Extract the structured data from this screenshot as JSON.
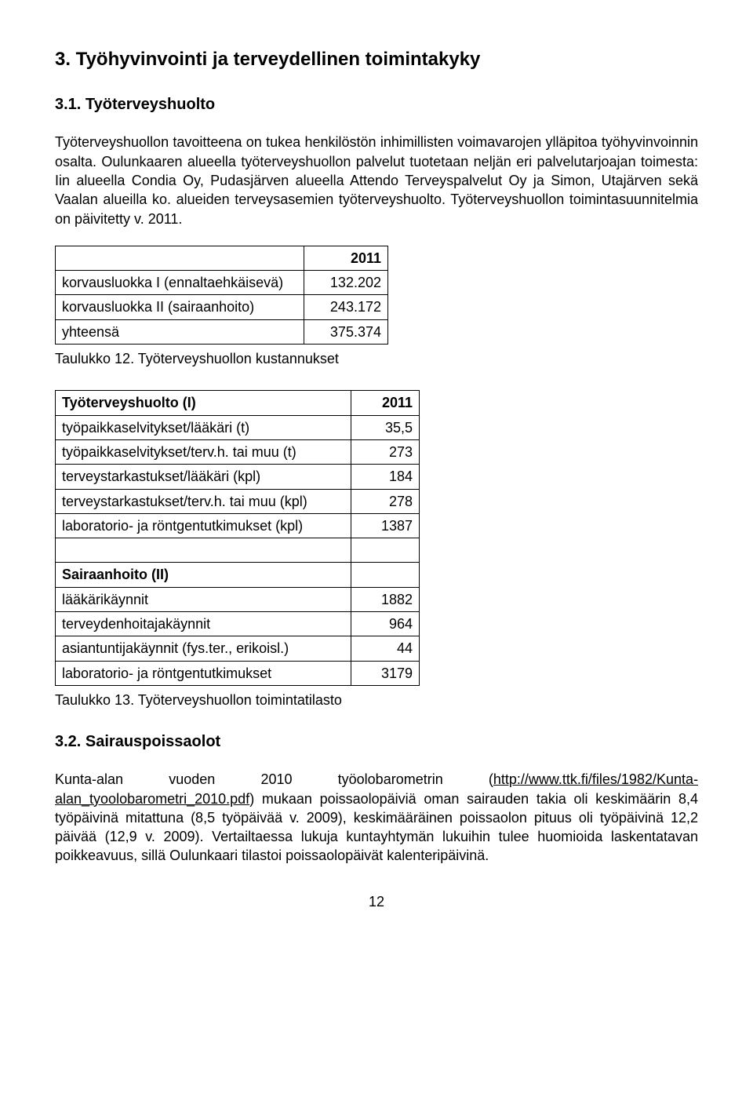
{
  "section3": {
    "title": "3. Työhyvinvointi ja terveydellinen toimintakyky",
    "sub31_title": "3.1. Työterveyshuolto",
    "para1": "Työterveyshuollon tavoitteena on tukea henkilöstön inhimillisten voimavarojen ylläpitoa työhyvinvoinnin osalta. Oulunkaaren alueella työterveyshuollon palvelut tuotetaan neljän eri palvelutarjoajan toimesta: Iin alueella Condia Oy, Pudasjärven alueella Attendo Terveyspalvelut Oy ja Simon, Utajärven sekä Vaalan alueilla ko. alueiden terveysasemien työterveyshuolto. Työterveyshuollon toimintasuunnitelmia on päivitetty v. 2011.",
    "table12": {
      "year": "2011",
      "rows": [
        {
          "label": "korvausluokka I (ennaltaehkäisevä)",
          "value": "132.202"
        },
        {
          "label": "korvausluokka II (sairaanhoito)",
          "value": "243.172"
        },
        {
          "label": "yhteensä",
          "value": "375.374"
        }
      ],
      "caption": "Taulukko 12. Työterveyshuollon kustannukset"
    },
    "table13": {
      "heading_label": "Työterveyshuolto (I)",
      "heading_value": "2011",
      "rows_a": [
        {
          "label": "työpaikkaselvitykset/lääkäri (t)",
          "value": "35,5"
        },
        {
          "label": "työpaikkaselvitykset/terv.h. tai muu (t)",
          "value": "273"
        },
        {
          "label": "terveystarkastukset/lääkäri (kpl)",
          "value": "184"
        },
        {
          "label": "terveystarkastukset/terv.h. tai muu (kpl)",
          "value": "278"
        },
        {
          "label": "laboratorio- ja röntgentutkimukset (kpl)",
          "value": "1387"
        }
      ],
      "subheading": "Sairaanhoito (II)",
      "rows_b": [
        {
          "label": "lääkärikäynnit",
          "value": "1882"
        },
        {
          "label": "terveydenhoitajakäynnit",
          "value": "964"
        },
        {
          "label": "asiantuntijakäynnit (fys.ter., erikoisl.)",
          "value": "44"
        },
        {
          "label": "laboratorio- ja röntgentutkimukset",
          "value": "3179"
        }
      ],
      "caption": "Taulukko 13. Työterveyshuollon toimintatilasto"
    },
    "sub32_title": "3.2. Sairauspoissaolot",
    "para2_pre": "Kunta-alan vuoden 2010 työolobarometrin (",
    "para2_link": "http://www.ttk.fi/files/1982/Kunta-alan_tyoolobarometri_2010.pdf",
    "para2_post": ") mukaan poissaolopäiviä oman sairauden takia oli keskimäärin 8,4 työpäivinä mitattuna (8,5 työpäivää v. 2009), keskimääräinen poissaolon pituus oli työpäivinä 12,2 päivää (12,9 v. 2009). Vertailtaessa lukuja kuntayhtymän lukuihin tulee huomioida laskentatavan poikkeavuus, sillä Oulunkaari tilastoi poissaolopäivät kalenteripäivinä."
  },
  "page_number": "12"
}
